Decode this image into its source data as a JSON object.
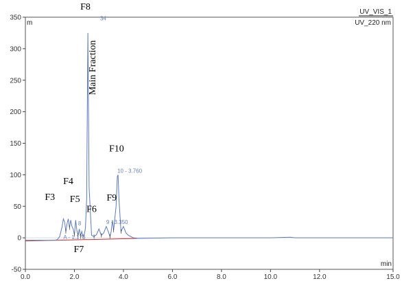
{
  "chart_data": {
    "type": "line",
    "title": "UV_VIS_1",
    "subtitle": "UV_220 nm",
    "y_unit": "m",
    "x_unit": "min",
    "xlim": [
      0.0,
      15.0
    ],
    "ylim": [
      -50,
      350
    ],
    "x_ticks": [
      "0.0",
      "2.0",
      "4.0",
      "6.0",
      "8.0",
      "10.0",
      "12.0",
      "15.0"
    ],
    "x_tick_values": [
      0,
      2,
      4,
      6,
      8,
      10,
      12,
      15
    ],
    "y_ticks": [
      "-50",
      "0",
      "50",
      "100",
      "150",
      "200",
      "250",
      "300",
      "350"
    ],
    "y_tick_values": [
      -50,
      0,
      50,
      100,
      150,
      200,
      250,
      300,
      350
    ],
    "grid": false,
    "series": [
      {
        "color": "#5d7ab8",
        "x": [
          0.0,
          1.2,
          1.3,
          1.4,
          1.5,
          1.55,
          1.6,
          1.65,
          1.7,
          1.75,
          1.8,
          1.85,
          1.9,
          1.95,
          2.0,
          2.05,
          2.1,
          2.15,
          2.2,
          2.25,
          2.3,
          2.35,
          2.4,
          2.45,
          2.5,
          2.55,
          2.6,
          2.7,
          2.8,
          2.9,
          3.0,
          3.1,
          3.2,
          3.3,
          3.4,
          3.45,
          3.5,
          3.55,
          3.6,
          3.7,
          3.75,
          3.78,
          3.82,
          3.9,
          4.0,
          4.1,
          4.2,
          4.4,
          4.6,
          6.0,
          8.0,
          10.0,
          10.8,
          11.0,
          12.0,
          14.0,
          15.0
        ],
        "y": [
          -4,
          -4,
          -3,
          2,
          18,
          30,
          25,
          10,
          22,
          30,
          16,
          28,
          18,
          14,
          5,
          28,
          12,
          4,
          14,
          3,
          10,
          2,
          5,
          15,
          60,
          325,
          80,
          4,
          2,
          5,
          14,
          4,
          8,
          18,
          8,
          2,
          10,
          28,
          12,
          50,
          97,
          100,
          60,
          10,
          18,
          8,
          4,
          0,
          -1,
          0,
          0,
          0,
          1,
          0,
          0,
          0,
          0
        ]
      }
    ],
    "baseline": {
      "color": "#c43030",
      "x": [
        0.0,
        4.6
      ],
      "y": [
        -5,
        -1
      ]
    },
    "peak_labels": [
      {
        "text": "A - 1.173",
        "x": 1.55,
        "y": -2
      },
      {
        "text": "8",
        "x": 2.15,
        "y": 20
      },
      {
        "text": "9 - 3.350",
        "x": 3.3,
        "y": 22
      },
      {
        "text": "10 - 3.760",
        "x": 3.75,
        "y": 103
      },
      {
        "text": "34",
        "x": 3.05,
        "y": 345
      }
    ],
    "annotations": [
      {
        "text": "F8",
        "x": 2.45,
        "y": 362
      },
      {
        "text": "Main Fraction",
        "x": 2.85,
        "y": 270,
        "rotate": true
      },
      {
        "text": "F10",
        "x": 3.72,
        "y": 137
      },
      {
        "text": "F4",
        "x": 1.75,
        "y": 85
      },
      {
        "text": "F3",
        "x": 1.0,
        "y": 60
      },
      {
        "text": "F5",
        "x": 2.02,
        "y": 57
      },
      {
        "text": "F9",
        "x": 3.52,
        "y": 59
      },
      {
        "text": "F6",
        "x": 2.7,
        "y": 41
      },
      {
        "text": "F7",
        "x": 2.18,
        "y": -23
      }
    ]
  }
}
